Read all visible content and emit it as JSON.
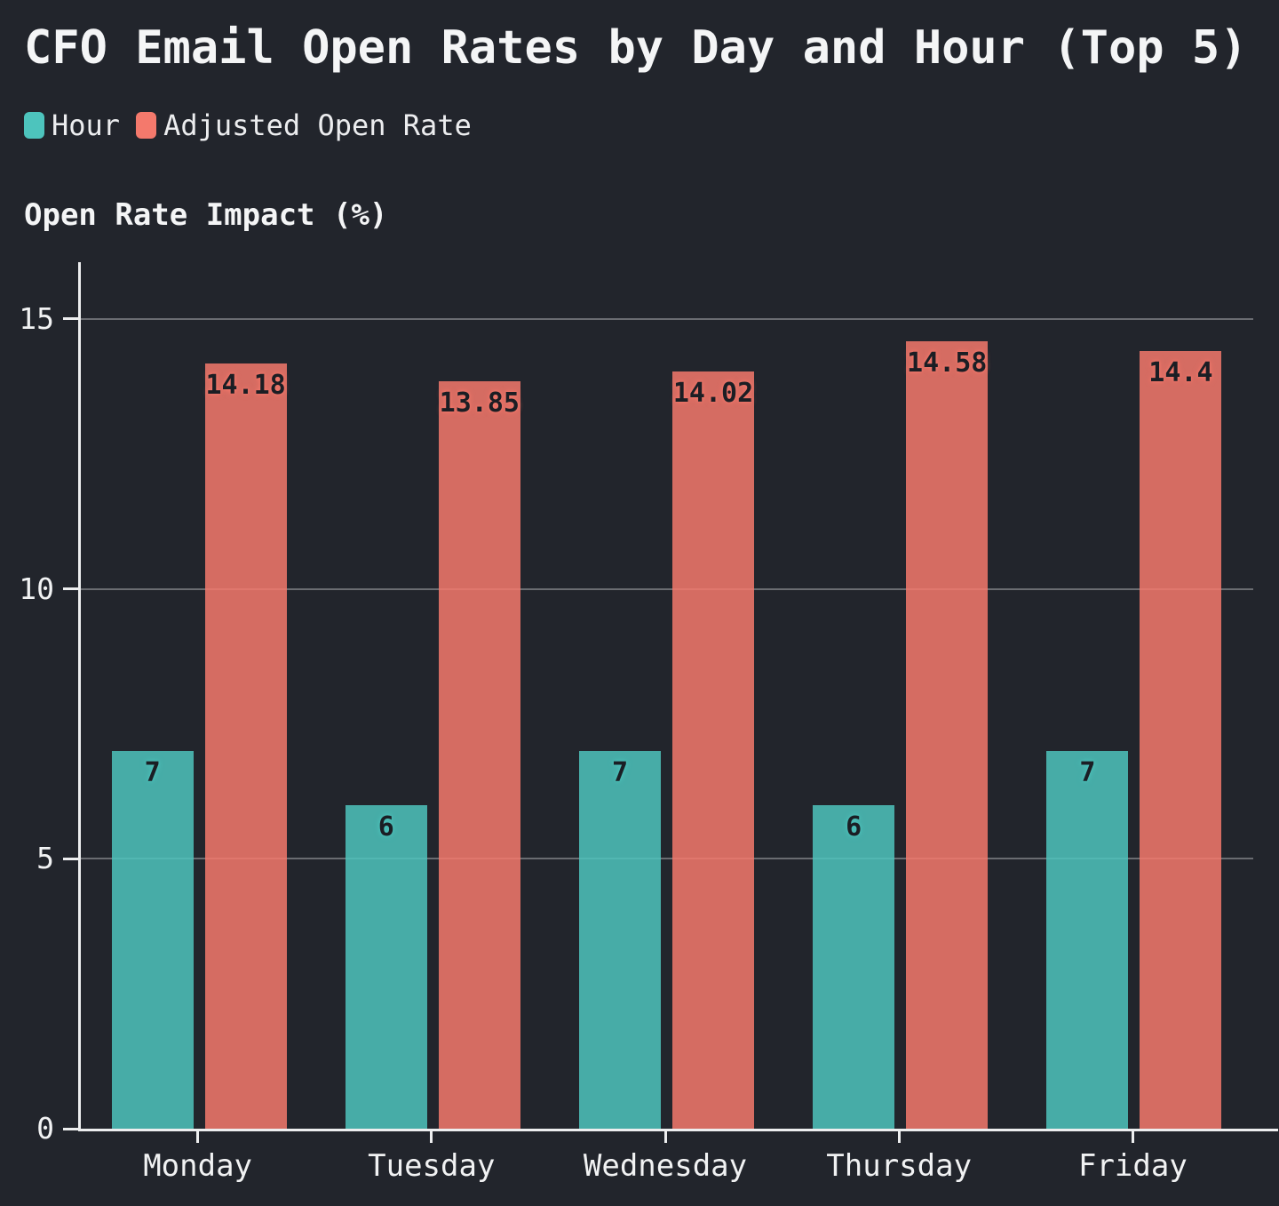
{
  "title": "CFO Email Open Rates by Day and Hour (Top 5)",
  "y_axis_title": "Open Rate Impact (%)",
  "colors": {
    "background": "#22252C",
    "hour_series": "#4DC4BD",
    "rate_series": "#F4796C",
    "axis": "#EDEEEF",
    "text": "#F1F2F3",
    "bar_label_text": "#1B1E24"
  },
  "chart_data": {
    "type": "bar",
    "title": "CFO Email Open Rates by Day and Hour (Top 5)",
    "ylabel": "Open Rate Impact (%)",
    "xlabel": "",
    "categories": [
      "Monday",
      "Tuesday",
      "Wednesday",
      "Thursday",
      "Friday"
    ],
    "series": [
      {
        "name": "Hour",
        "color": "#4DC4BD",
        "values": [
          7,
          6,
          7,
          6,
          7
        ]
      },
      {
        "name": "Adjusted Open Rate",
        "color": "#F4796C",
        "values": [
          14.18,
          13.85,
          14.02,
          14.58,
          14.4
        ]
      }
    ],
    "ylim": [
      0,
      15
    ],
    "yticks": [
      0,
      5,
      10,
      15
    ],
    "grid": true,
    "legend_position": "top-left",
    "bar_labels_visible": true
  }
}
